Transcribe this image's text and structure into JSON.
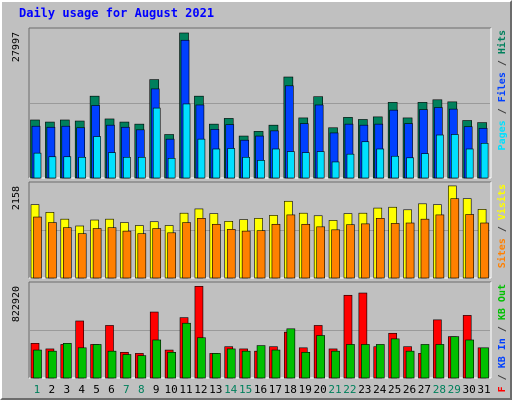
{
  "title": "Daily usage for August 2021",
  "colors": {
    "background": "#c0c0c0",
    "panel": "#c0c0c0",
    "hits": "#00805c",
    "files": "#0040ff",
    "pages": "#00e0ff",
    "visits": "#ffff00",
    "sites": "#ff8000",
    "kbin": "#ff0000",
    "kbout": "#00c000",
    "weekday_label": "#00805c",
    "weekend_label": "#000000"
  },
  "chart_data": [
    {
      "type": "bar",
      "panel": "hits-files-pages",
      "tick_label": "27997",
      "ylim": [
        0,
        27997
      ],
      "categories": [
        "1",
        "2",
        "3",
        "4",
        "5",
        "6",
        "7",
        "8",
        "9",
        "10",
        "11",
        "12",
        "13",
        "14",
        "15",
        "16",
        "17",
        "18",
        "19",
        "20",
        "21",
        "22",
        "23",
        "24",
        "25",
        "26",
        "27",
        "28",
        "29",
        "30",
        "31"
      ],
      "series": [
        {
          "name": "Hits",
          "values": [
            11200,
            10800,
            11200,
            11000,
            15800,
            11400,
            10800,
            10400,
            19000,
            8400,
            28000,
            15800,
            10400,
            11500,
            8100,
            9000,
            10200,
            19500,
            11600,
            15700,
            9700,
            11700,
            11300,
            11800,
            14600,
            11600,
            14600,
            15100,
            14700,
            11100,
            10700
          ]
        },
        {
          "name": "Files",
          "values": [
            10000,
            9800,
            10000,
            9700,
            14000,
            10200,
            9800,
            9300,
            17200,
            7500,
            26600,
            14100,
            9400,
            10300,
            7300,
            8100,
            9100,
            17800,
            10500,
            14100,
            8700,
            10400,
            10200,
            10400,
            13100,
            10500,
            13200,
            13600,
            13300,
            9900,
            9600
          ]
        },
        {
          "name": "Pages",
          "values": [
            4800,
            4100,
            4100,
            4000,
            8000,
            4900,
            4000,
            4000,
            13500,
            3800,
            14300,
            7500,
            5600,
            5700,
            4000,
            3400,
            5600,
            5100,
            4900,
            5100,
            3100,
            4600,
            7000,
            5600,
            4200,
            3900,
            4700,
            8300,
            8400,
            5600,
            6700
          ]
        }
      ]
    },
    {
      "type": "bar",
      "panel": "visits-sites",
      "tick_label": "2158",
      "ylim": [
        0,
        2158
      ],
      "categories": [
        "1",
        "2",
        "3",
        "4",
        "5",
        "6",
        "7",
        "8",
        "9",
        "10",
        "11",
        "12",
        "13",
        "14",
        "15",
        "16",
        "17",
        "18",
        "19",
        "20",
        "21",
        "22",
        "23",
        "24",
        "25",
        "26",
        "27",
        "28",
        "29",
        "30",
        "31"
      ],
      "series": [
        {
          "name": "Visits",
          "values": [
            1720,
            1540,
            1380,
            1220,
            1360,
            1380,
            1300,
            1230,
            1320,
            1230,
            1520,
            1620,
            1510,
            1330,
            1370,
            1400,
            1470,
            1800,
            1520,
            1460,
            1350,
            1510,
            1520,
            1640,
            1660,
            1600,
            1740,
            1720,
            2160,
            1860,
            1610
          ]
        },
        {
          "name": "Sites",
          "values": [
            1430,
            1300,
            1180,
            1040,
            1160,
            1180,
            1100,
            1040,
            1160,
            1060,
            1300,
            1400,
            1260,
            1140,
            1100,
            1110,
            1260,
            1480,
            1260,
            1200,
            1130,
            1250,
            1270,
            1400,
            1280,
            1290,
            1380,
            1480,
            1860,
            1490,
            1290
          ]
        }
      ]
    },
    {
      "type": "bar",
      "panel": "kb",
      "tick_label": "822920",
      "ylim": [
        0,
        822920
      ],
      "categories": [
        "1",
        "2",
        "3",
        "4",
        "5",
        "6",
        "7",
        "8",
        "9",
        "10",
        "11",
        "12",
        "13",
        "14",
        "15",
        "16",
        "17",
        "18",
        "19",
        "20",
        "21",
        "22",
        "23",
        "24",
        "25",
        "26",
        "27",
        "28",
        "29",
        "30",
        "31"
      ],
      "series": [
        {
          "name": "KB F",
          "values": [
            310000,
            260000,
            300000,
            510000,
            300000,
            470000,
            230000,
            220000,
            590000,
            250000,
            540000,
            820000,
            220000,
            280000,
            260000,
            240000,
            280000,
            410000,
            270000,
            470000,
            260000,
            740000,
            760000,
            280000,
            400000,
            280000,
            220000,
            520000,
            370000,
            560000,
            270000
          ]
        },
        {
          "name": "KB In",
          "values": [
            0,
            0,
            0,
            0,
            0,
            0,
            0,
            0,
            0,
            0,
            0,
            0,
            0,
            0,
            0,
            0,
            0,
            0,
            0,
            0,
            0,
            0,
            0,
            0,
            0,
            0,
            0,
            0,
            0,
            0,
            0
          ]
        },
        {
          "name": "KB Out",
          "values": [
            250000,
            240000,
            310000,
            270000,
            300000,
            240000,
            210000,
            200000,
            340000,
            230000,
            490000,
            360000,
            220000,
            260000,
            240000,
            290000,
            250000,
            440000,
            230000,
            380000,
            240000,
            300000,
            300000,
            300000,
            350000,
            240000,
            300000,
            300000,
            370000,
            340000,
            270000
          ]
        }
      ]
    }
  ],
  "legends": {
    "hits_panel": [
      {
        "label": "Pages",
        "color": "#00e0ff"
      },
      {
        "label": " / ",
        "color": "#404040"
      },
      {
        "label": "Files",
        "color": "#0040ff"
      },
      {
        "label": " / ",
        "color": "#404040"
      },
      {
        "label": "Hits",
        "color": "#00805c"
      }
    ],
    "visits_panel": [
      {
        "label": "Sites",
        "color": "#ff8000"
      },
      {
        "label": " / ",
        "color": "#404040"
      },
      {
        "label": "Visits",
        "color": "#ffff00"
      }
    ],
    "kb_panel": [
      {
        "label": "KB F",
        "color": "#ff0000"
      },
      {
        "label": " / ",
        "color": "#404040"
      },
      {
        "label": "KB In",
        "color": "#0040ff"
      },
      {
        "label": " / ",
        "color": "#404040"
      },
      {
        "label": "KB Out",
        "color": "#00c000"
      }
    ]
  },
  "weekend_days": [
    1,
    7,
    8,
    14,
    15,
    21,
    22,
    28,
    29
  ]
}
